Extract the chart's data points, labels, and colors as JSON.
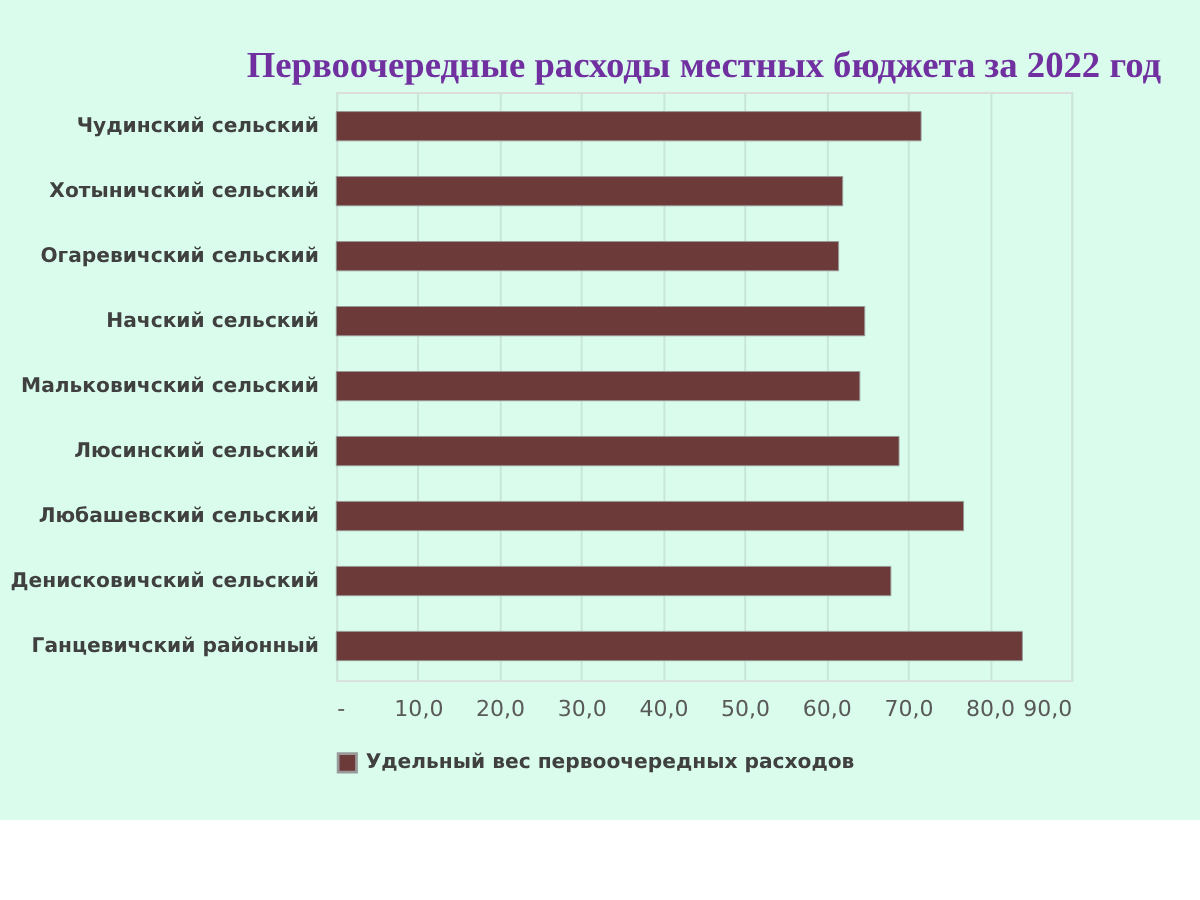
{
  "chart_data": {
    "type": "bar",
    "orientation": "horizontal",
    "title": "Первоочередные расходы местных бюджета за 2022 год",
    "categories": [
      "Чудинский сельский",
      "Хотыничский сельский",
      "Огаревичский сельский",
      "Начский сельский",
      "Мальковичский сельский",
      "Люсинский сельский",
      "Любашевский сельский",
      "Денисковичский сельский",
      "Ганцевичский районный"
    ],
    "series": [
      {
        "name": "Удельный вес первоочередных расходов",
        "color": "#6b3a39",
        "values": [
          71.6,
          62.0,
          61.5,
          64.7,
          64.1,
          68.9,
          76.8,
          67.9,
          84.0
        ]
      }
    ],
    "xlim": [
      0,
      90
    ],
    "xticks": [
      {
        "value": 0,
        "label": "-"
      },
      {
        "value": 10,
        "label": "10,0"
      },
      {
        "value": 20,
        "label": "20,0"
      },
      {
        "value": 30,
        "label": "30,0"
      },
      {
        "value": 40,
        "label": "40,0"
      },
      {
        "value": 50,
        "label": "50,0"
      },
      {
        "value": 60,
        "label": "60,0"
      },
      {
        "value": 70,
        "label": "70,0"
      },
      {
        "value": 80,
        "label": "80,0"
      },
      {
        "value": 90,
        "label": "90,0"
      }
    ],
    "grid": "x",
    "legend": "bottom"
  }
}
